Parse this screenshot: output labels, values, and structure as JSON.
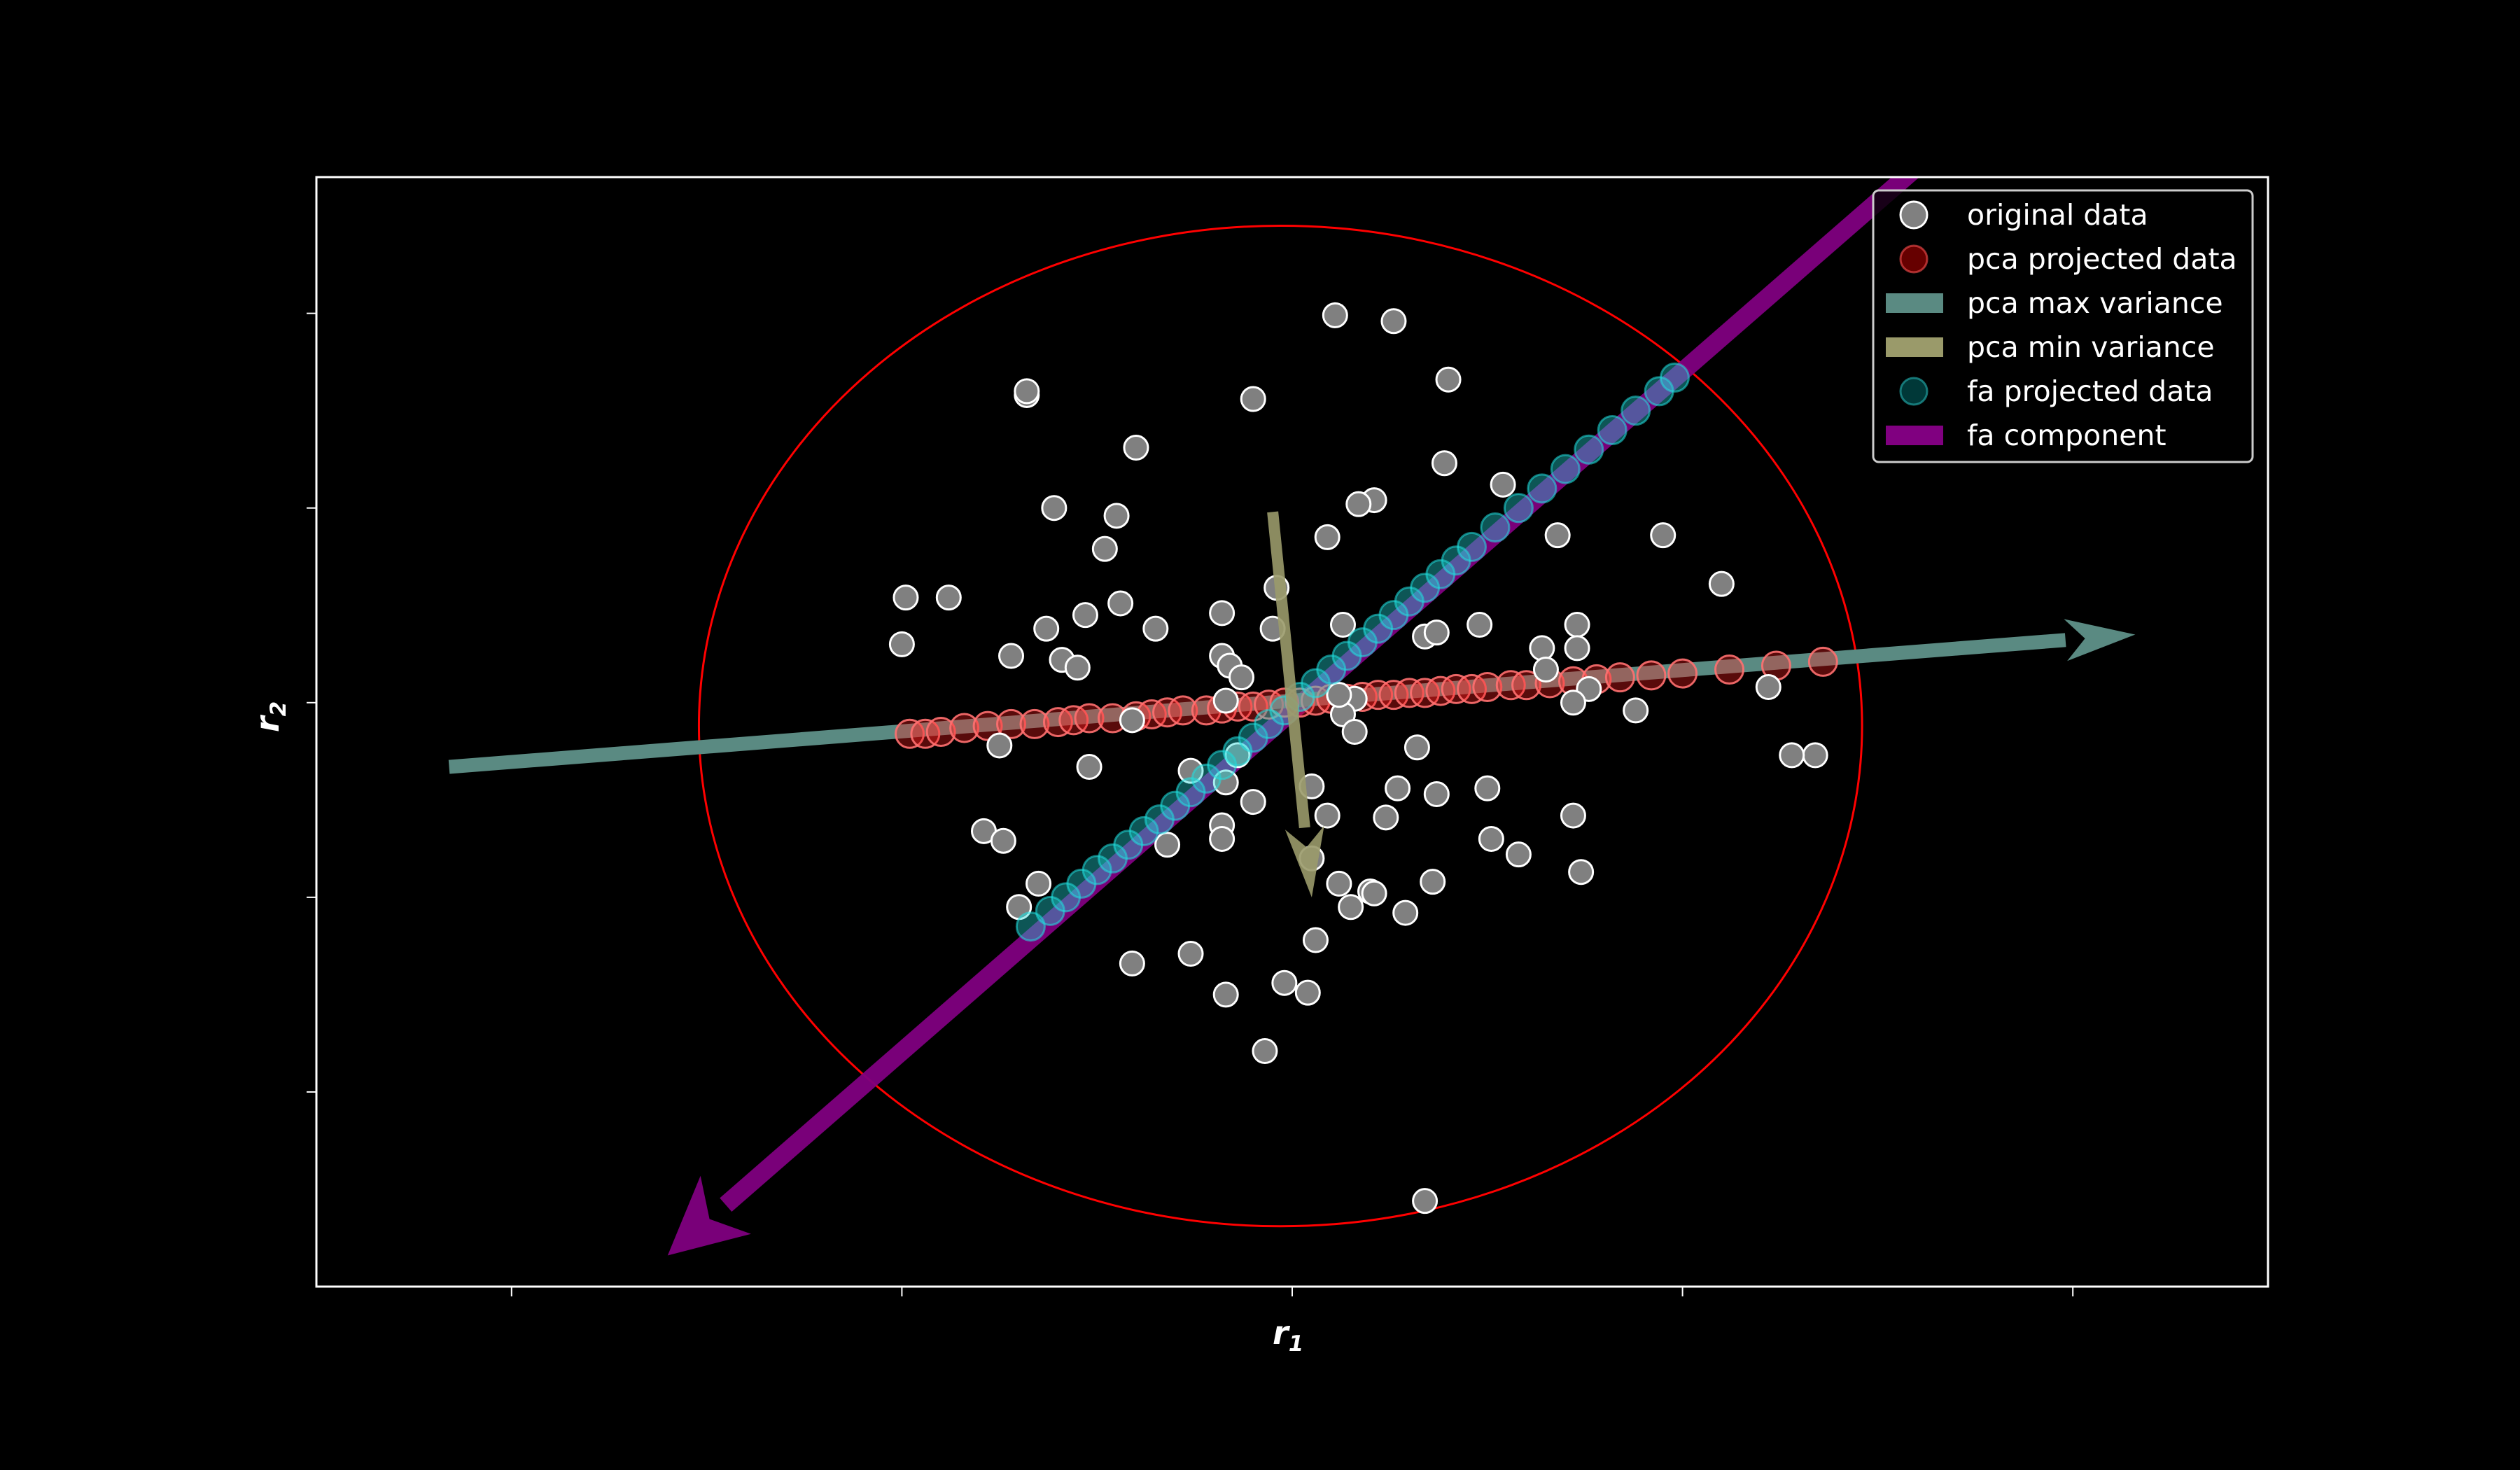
{
  "chart_data": {
    "type": "scatter",
    "title": "",
    "xlabel": "r",
    "xlabel_sub": "1",
    "ylabel": "r",
    "ylabel_sub": "2",
    "xlim": [
      -2.5,
      2.5
    ],
    "ylim": [
      -3.0,
      2.7
    ],
    "xticks": [
      -2,
      -1,
      0,
      1,
      2
    ],
    "yticks": [
      -2,
      -1,
      0,
      1,
      2
    ],
    "tick_labels_visible": false,
    "grid": false,
    "legend_position": "top-right",
    "background": "#000000",
    "colors": {
      "original": "#808080",
      "original_edge": "#ffffff",
      "pca_projected": "#ff2020",
      "pca_max": "#5a8a82",
      "pca_min": "#9a9a6a",
      "fa_projected": "#20d8d8",
      "fa_component": "#800080",
      "circle": "#ff0000"
    },
    "legend": [
      {
        "key": "original",
        "label": "original data",
        "kind": "marker"
      },
      {
        "key": "pca_projected",
        "label": "pca projected data",
        "kind": "marker"
      },
      {
        "key": "pca_max",
        "label": "pca max variance",
        "kind": "patch"
      },
      {
        "key": "pca_min",
        "label": "pca min variance",
        "kind": "patch"
      },
      {
        "key": "fa_projected",
        "label": "fa projected data",
        "kind": "marker"
      },
      {
        "key": "fa_component",
        "label": "fa component",
        "kind": "patch"
      }
    ],
    "circle": {
      "cx": -0.03,
      "cy": -0.12,
      "rx": 1.49,
      "ry": 2.57
    },
    "pca_max_arrow": {
      "from": [
        -2.16,
        -0.33
      ],
      "to": [
        2.16,
        0.35
      ]
    },
    "pca_min_arrow": {
      "from": [
        -0.05,
        0.98
      ],
      "to": [
        0.05,
        -1.0
      ]
    },
    "fa_component_arrow": {
      "from": [
        1.6,
        2.75
      ],
      "to": [
        -1.6,
        -2.84
      ]
    },
    "original_data": [
      [
        0.11,
        1.99
      ],
      [
        0.26,
        1.96
      ],
      [
        0.4,
        1.66
      ],
      [
        -0.68,
        1.58
      ],
      [
        -0.1,
        1.56
      ],
      [
        -0.68,
        1.6
      ],
      [
        -0.4,
        1.31
      ],
      [
        0.39,
        1.23
      ],
      [
        -0.61,
        1.0
      ],
      [
        -0.45,
        0.96
      ],
      [
        -0.48,
        0.79
      ],
      [
        0.54,
        1.12
      ],
      [
        0.21,
        1.04
      ],
      [
        0.17,
        1.02
      ],
      [
        0.09,
        0.85
      ],
      [
        0.68,
        0.86
      ],
      [
        0.95,
        0.86
      ],
      [
        1.1,
        0.61
      ],
      [
        -0.88,
        0.54
      ],
      [
        -0.99,
        0.54
      ],
      [
        -0.53,
        0.45
      ],
      [
        -0.44,
        0.51
      ],
      [
        -0.18,
        0.46
      ],
      [
        -0.04,
        0.59
      ],
      [
        -0.63,
        0.38
      ],
      [
        -0.35,
        0.38
      ],
      [
        -0.18,
        0.24
      ],
      [
        -0.16,
        0.19
      ],
      [
        -0.13,
        0.13
      ],
      [
        -0.05,
        0.38
      ],
      [
        0.13,
        0.4
      ],
      [
        0.34,
        0.34
      ],
      [
        0.37,
        0.36
      ],
      [
        0.48,
        0.4
      ],
      [
        0.73,
        0.4
      ],
      [
        -1.0,
        0.3
      ],
      [
        -0.72,
        0.24
      ],
      [
        -0.59,
        0.22
      ],
      [
        -0.55,
        0.18
      ],
      [
        -0.17,
        0.01
      ],
      [
        0.64,
        0.28
      ],
      [
        0.65,
        0.17
      ],
      [
        0.16,
        0.02
      ],
      [
        0.13,
        -0.06
      ],
      [
        0.73,
        0.28
      ],
      [
        0.76,
        0.07
      ],
      [
        0.72,
        0.0
      ],
      [
        0.88,
        -0.04
      ],
      [
        1.22,
        0.08
      ],
      [
        0.32,
        -0.23
      ],
      [
        -0.41,
        -0.09
      ],
      [
        -0.75,
        -0.22
      ],
      [
        -0.14,
        -0.27
      ],
      [
        0.16,
        -0.15
      ],
      [
        1.34,
        -0.27
      ],
      [
        -0.52,
        -0.33
      ],
      [
        -0.26,
        -0.35
      ],
      [
        -0.17,
        -0.41
      ],
      [
        -0.1,
        -0.51
      ],
      [
        0.27,
        -0.44
      ],
      [
        0.24,
        -0.59
      ],
      [
        0.37,
        -0.47
      ],
      [
        0.5,
        -0.44
      ],
      [
        0.05,
        -0.43
      ],
      [
        0.09,
        -0.58
      ],
      [
        0.51,
        -0.7
      ],
      [
        0.58,
        -0.78
      ],
      [
        0.72,
        -0.58
      ],
      [
        -0.79,
        -0.66
      ],
      [
        -0.74,
        -0.71
      ],
      [
        -0.32,
        -0.73
      ],
      [
        -0.18,
        -0.63
      ],
      [
        -0.18,
        -0.7
      ],
      [
        0.05,
        -0.8
      ],
      [
        -0.65,
        -0.93
      ],
      [
        -0.7,
        -1.05
      ],
      [
        0.12,
        -0.93
      ],
      [
        0.2,
        -0.97
      ],
      [
        0.15,
        -1.05
      ],
      [
        0.21,
        -0.98
      ],
      [
        0.29,
        -1.08
      ],
      [
        0.36,
        -0.92
      ],
      [
        0.74,
        -0.87
      ],
      [
        -0.41,
        -1.34
      ],
      [
        -0.26,
        -1.29
      ],
      [
        0.06,
        -1.22
      ],
      [
        -0.17,
        -1.5
      ],
      [
        -0.02,
        -1.44
      ],
      [
        0.04,
        -1.49
      ],
      [
        -0.07,
        -1.79
      ],
      [
        0.34,
        -2.56
      ],
      [
        1.28,
        -0.27
      ],
      [
        0.12,
        0.04
      ]
    ],
    "pca_projected_data": [
      [
        -0.98,
        -0.16
      ],
      [
        -0.94,
        -0.16
      ],
      [
        -0.9,
        -0.15
      ],
      [
        -0.84,
        -0.13
      ],
      [
        -0.78,
        -0.12
      ],
      [
        -0.72,
        -0.11
      ],
      [
        -0.66,
        -0.11
      ],
      [
        -0.6,
        -0.1
      ],
      [
        -0.56,
        -0.09
      ],
      [
        -0.52,
        -0.08
      ],
      [
        -0.46,
        -0.08
      ],
      [
        -0.4,
        -0.07
      ],
      [
        -0.36,
        -0.06
      ],
      [
        -0.32,
        -0.05
      ],
      [
        -0.28,
        -0.04
      ],
      [
        -0.22,
        -0.04
      ],
      [
        -0.18,
        -0.03
      ],
      [
        -0.14,
        -0.02
      ],
      [
        -0.1,
        -0.02
      ],
      [
        -0.06,
        -0.01
      ],
      [
        -0.02,
        0.0
      ],
      [
        0.02,
        0.0
      ],
      [
        0.06,
        0.01
      ],
      [
        0.1,
        0.02
      ],
      [
        0.14,
        0.02
      ],
      [
        0.18,
        0.03
      ],
      [
        0.22,
        0.04
      ],
      [
        0.26,
        0.04
      ],
      [
        0.3,
        0.05
      ],
      [
        0.34,
        0.05
      ],
      [
        0.38,
        0.06
      ],
      [
        0.42,
        0.07
      ],
      [
        0.46,
        0.07
      ],
      [
        0.5,
        0.08
      ],
      [
        0.56,
        0.09
      ],
      [
        0.6,
        0.09
      ],
      [
        0.66,
        0.1
      ],
      [
        0.72,
        0.11
      ],
      [
        0.78,
        0.12
      ],
      [
        0.84,
        0.13
      ],
      [
        0.92,
        0.14
      ],
      [
        1.0,
        0.15
      ],
      [
        1.12,
        0.17
      ],
      [
        1.24,
        0.19
      ],
      [
        1.36,
        0.21
      ]
    ],
    "fa_projected_data": [
      [
        -0.67,
        -1.15
      ],
      [
        -0.62,
        -1.07
      ],
      [
        -0.58,
        -1.0
      ],
      [
        -0.54,
        -0.93
      ],
      [
        -0.5,
        -0.86
      ],
      [
        -0.46,
        -0.8
      ],
      [
        -0.42,
        -0.73
      ],
      [
        -0.38,
        -0.66
      ],
      [
        -0.34,
        -0.6
      ],
      [
        -0.3,
        -0.53
      ],
      [
        -0.26,
        -0.46
      ],
      [
        -0.22,
        -0.39
      ],
      [
        -0.18,
        -0.32
      ],
      [
        -0.14,
        -0.25
      ],
      [
        -0.1,
        -0.18
      ],
      [
        -0.06,
        -0.11
      ],
      [
        -0.02,
        -0.04
      ],
      [
        0.02,
        0.03
      ],
      [
        0.06,
        0.1
      ],
      [
        0.1,
        0.17
      ],
      [
        0.14,
        0.24
      ],
      [
        0.18,
        0.31
      ],
      [
        0.22,
        0.38
      ],
      [
        0.26,
        0.45
      ],
      [
        0.3,
        0.52
      ],
      [
        0.34,
        0.59
      ],
      [
        0.38,
        0.66
      ],
      [
        0.42,
        0.73
      ],
      [
        0.46,
        0.8
      ],
      [
        0.52,
        0.9
      ],
      [
        0.58,
        1.0
      ],
      [
        0.64,
        1.1
      ],
      [
        0.7,
        1.2
      ],
      [
        0.76,
        1.3
      ],
      [
        0.82,
        1.4
      ],
      [
        0.88,
        1.5
      ],
      [
        0.94,
        1.6
      ],
      [
        0.98,
        1.67
      ]
    ]
  }
}
